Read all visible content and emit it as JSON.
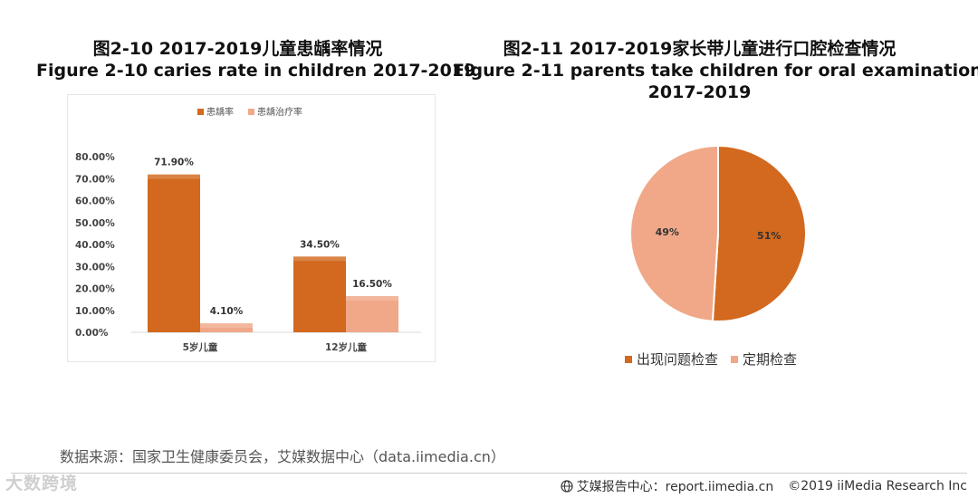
{
  "left_chart": {
    "title_cn": "图2-10 2017-2019儿童患龋率情况",
    "title_en": "Figure 2-10 caries rate in children 2017-2019"
  },
  "right_chart": {
    "title_cn": "图2-11 2017-2019家长带儿童进行口腔检查情况",
    "title_en": "Figure 2-11 parents take children for oral examination",
    "title_en2": "2017-2019"
  },
  "chart_data": [
    {
      "type": "bar",
      "categories": [
        "5岁儿童",
        "12岁儿童"
      ],
      "series": [
        {
          "name": "患龋率",
          "values": [
            71.9,
            34.5
          ],
          "labels": [
            "71.90%",
            "34.50%"
          ],
          "color": "#d2691e"
        },
        {
          "name": "患龋治疗率",
          "values": [
            4.1,
            16.5
          ],
          "labels": [
            "4.10%",
            "16.50%"
          ],
          "color": "#f0a888"
        }
      ],
      "yticks": [
        "0.00%",
        "10.00%",
        "20.00%",
        "30.00%",
        "40.00%",
        "50.00%",
        "60.00%",
        "70.00%",
        "80.00%"
      ],
      "ylim": [
        0,
        80
      ],
      "legend": "top"
    },
    {
      "type": "pie",
      "slices": [
        {
          "name": "出现问题检查",
          "value": 51,
          "label": "51%",
          "color": "#d2691e"
        },
        {
          "name": "定期检查",
          "value": 49,
          "label": "49%",
          "color": "#f0a888"
        }
      ],
      "legend": "bottom"
    }
  ],
  "source": "数据来源：国家卫生健康委员会，艾媒数据中心（data.iimedia.cn）",
  "watermark": "大数跨境",
  "footer": {
    "brand": "艾媒报告中心：report.iimedia.cn",
    "copyright": "©2019  iiMedia Research  Inc"
  }
}
